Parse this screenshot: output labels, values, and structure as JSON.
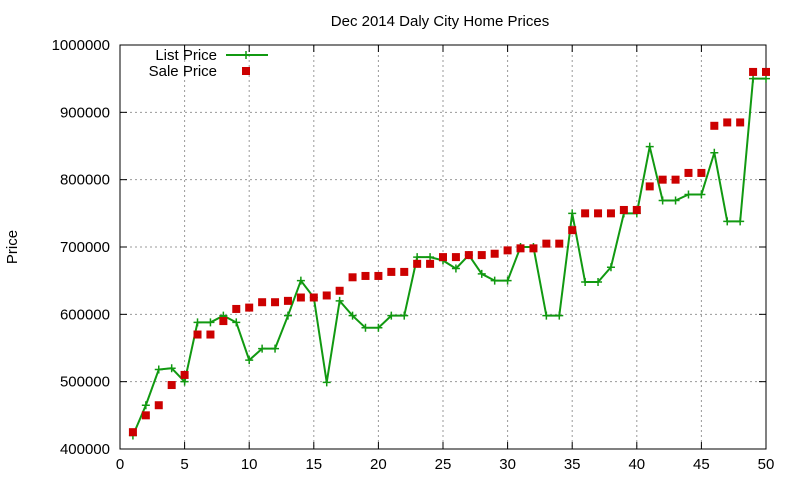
{
  "chart_data": {
    "type": "line",
    "title": "Dec 2014 Daly City Home Prices",
    "xlabel": "",
    "ylabel": "Price",
    "xlim": [
      0,
      50
    ],
    "ylim": [
      400000,
      1000000
    ],
    "xticks": [
      0,
      5,
      10,
      15,
      20,
      25,
      30,
      35,
      40,
      45,
      50
    ],
    "yticks": [
      400000,
      500000,
      600000,
      700000,
      800000,
      900000,
      1000000
    ],
    "grid": true,
    "legend_position": "top-left",
    "series": [
      {
        "name": "List Price",
        "style": "line-plus",
        "color": "#119911",
        "x": [
          1,
          2,
          3,
          4,
          5,
          6,
          7,
          8,
          9,
          10,
          11,
          12,
          13,
          14,
          15,
          16,
          17,
          18,
          19,
          20,
          21,
          22,
          23,
          24,
          25,
          26,
          27,
          28,
          29,
          30,
          31,
          32,
          33,
          34,
          35,
          36,
          37,
          38,
          39,
          40,
          41,
          42,
          43,
          44,
          45,
          46,
          47,
          48,
          49,
          50
        ],
        "values": [
          420000,
          465000,
          518000,
          520000,
          500000,
          588000,
          588000,
          598000,
          588000,
          532000,
          549000,
          549000,
          598000,
          650000,
          625000,
          499000,
          620000,
          598000,
          580000,
          580000,
          598000,
          598000,
          685000,
          685000,
          680000,
          668000,
          688000,
          660000,
          650000,
          650000,
          700000,
          700000,
          598000,
          598000,
          750000,
          648000,
          648000,
          670000,
          750000,
          750000,
          849000,
          769000,
          769000,
          778000,
          778000,
          840000,
          738000,
          738000,
          950000,
          950000
        ]
      },
      {
        "name": "Sale Price",
        "style": "square-markers",
        "color": "#cc0000",
        "x": [
          1,
          2,
          3,
          4,
          5,
          6,
          7,
          8,
          9,
          10,
          11,
          12,
          13,
          14,
          15,
          16,
          17,
          18,
          19,
          20,
          21,
          22,
          23,
          24,
          25,
          26,
          27,
          28,
          29,
          30,
          31,
          32,
          33,
          34,
          35,
          36,
          37,
          38,
          39,
          40,
          41,
          42,
          43,
          44,
          45,
          46,
          47,
          48,
          49,
          50
        ],
        "values": [
          425000,
          450000,
          465000,
          495000,
          510000,
          570000,
          570000,
          590000,
          608000,
          610000,
          618000,
          618000,
          620000,
          625000,
          625000,
          628000,
          635000,
          655000,
          657000,
          657000,
          663000,
          663000,
          675000,
          675000,
          685000,
          685000,
          688000,
          688000,
          690000,
          695000,
          698000,
          698000,
          705000,
          705000,
          725000,
          750000,
          750000,
          750000,
          755000,
          755000,
          790000,
          800000,
          800000,
          810000,
          810000,
          880000,
          885000,
          885000,
          960000,
          960000
        ]
      }
    ]
  }
}
